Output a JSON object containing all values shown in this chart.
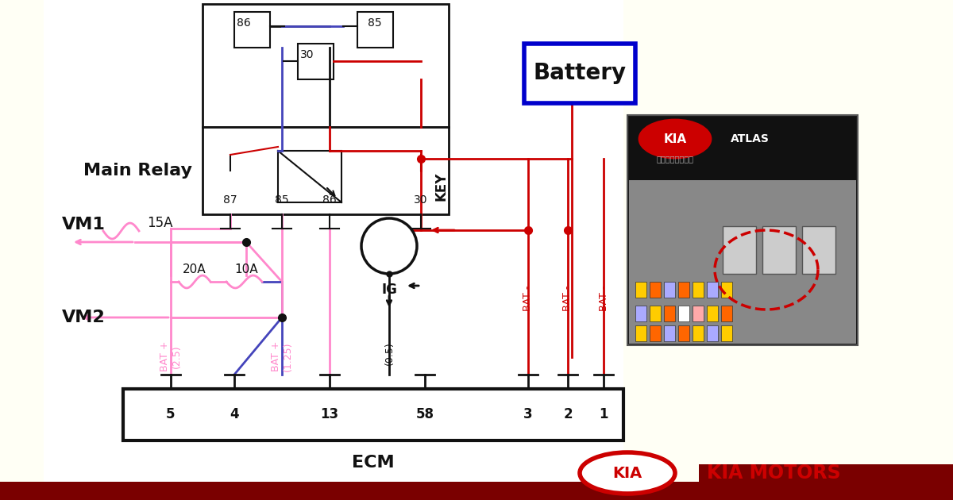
{
  "bg_color": "#fffff5",
  "white_bg": "#ffffff",
  "red": "#cc0000",
  "pink": "#ff88cc",
  "blue": "#4444bb",
  "black": "#111111",
  "dark_red": "#7a0000",
  "blue_border": "#0000cc",
  "kia_red": "#cc0000",
  "main_relay_label": "Main Relay",
  "battery_label": "Battery",
  "vm1_label": "VM1",
  "vm2_label": "VM2",
  "key_label": "KEY",
  "ig_label": "IG",
  "ecm_label": "ECM",
  "fuse_15a": "15A",
  "fuse_20a": "20A",
  "fuse_10a": "10A",
  "relay_pins": [
    "87",
    "85",
    "86",
    "30"
  ],
  "ecm_pins": [
    "5",
    "4",
    "13",
    "58",
    "3",
    "2",
    "1"
  ],
  "kia_motors_text": "KIA MOTORS",
  "lw": 2.0
}
